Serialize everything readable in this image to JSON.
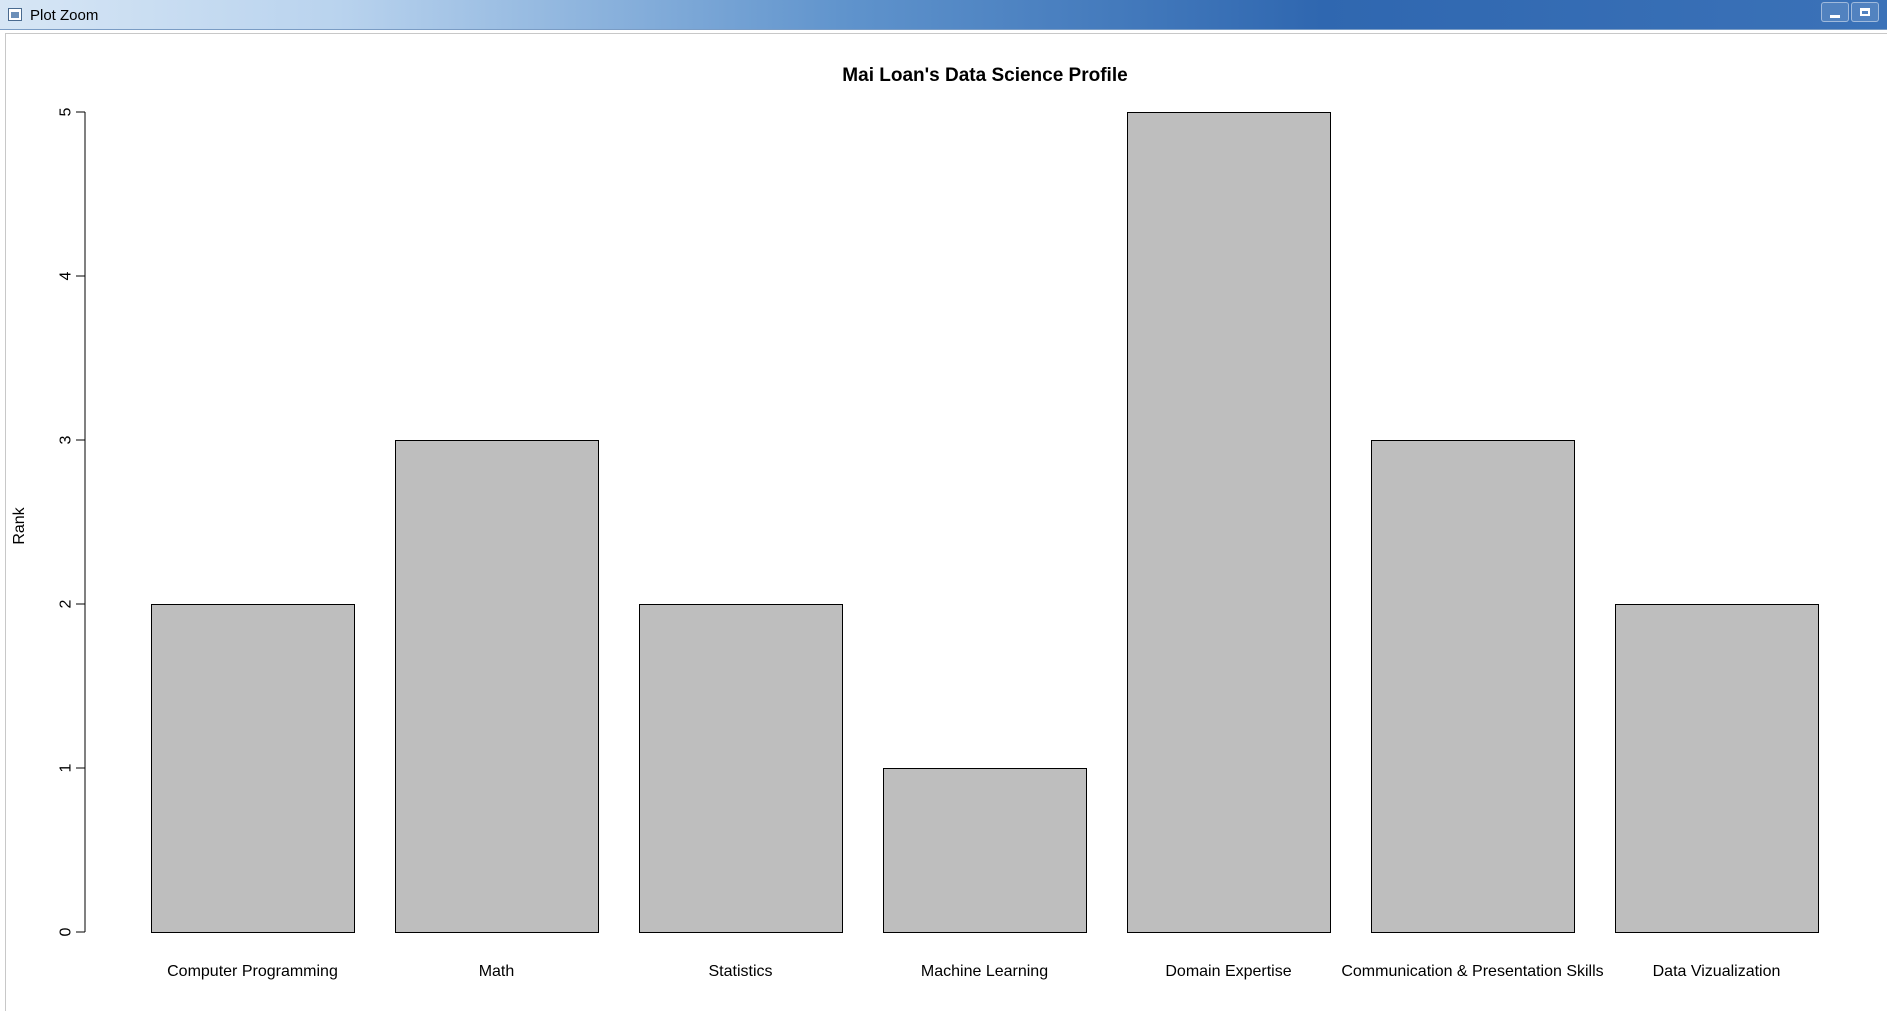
{
  "window": {
    "title": "Plot Zoom",
    "controls": {
      "minimize_icon": "minimize-icon",
      "maximize_icon": "maximize-icon"
    }
  },
  "chart_data": {
    "type": "bar",
    "title": "Mai Loan's Data Science Profile",
    "xlabel": "",
    "ylabel": "Rank",
    "categories": [
      "Computer Programming",
      "Math",
      "Statistics",
      "Machine Learning",
      "Domain Expertise",
      "Communication & Presentation Skills",
      "Data Vizualization"
    ],
    "values": [
      2,
      3,
      2,
      1,
      5,
      3,
      2
    ],
    "ylim": [
      0,
      5
    ],
    "yticks": [
      "0",
      "1",
      "2",
      "3",
      "4",
      "5"
    ],
    "grid": false,
    "legend": "none",
    "bar_color": "#bebebe",
    "bar_border": "#000000"
  }
}
